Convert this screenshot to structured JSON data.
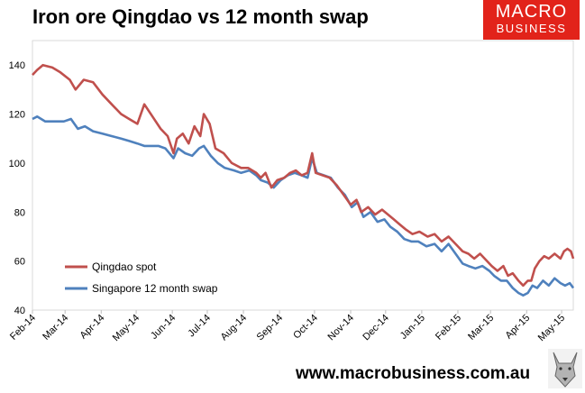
{
  "header": {
    "title": "Iron ore Qingdao vs 12 month swap",
    "logo_line1": "MACRO",
    "logo_line2": "BUSINESS"
  },
  "footer": {
    "url": "www.macrobusiness.com.au",
    "mascot_icon": "wolf-icon"
  },
  "colors": {
    "qingdao": "#c0504d",
    "singapore": "#4f81bd",
    "brand": "#e2231a"
  },
  "chart_data": {
    "type": "line",
    "title": "Iron ore Qingdao vs 12 month swap",
    "xlabel": "",
    "ylabel": "",
    "ylim": [
      40,
      150
    ],
    "yticks": [
      40,
      60,
      80,
      100,
      120,
      140
    ],
    "xlim": [
      "2014-02-01",
      "2015-05-11"
    ],
    "xticks": [
      "Feb-14",
      "Mar-14",
      "Apr-14",
      "May-14",
      "Jun-14",
      "Jul-14",
      "Aug-14",
      "Sep-14",
      "Oct-14",
      "Nov-14",
      "Dec-14",
      "Jan-15",
      "Feb-15",
      "Mar-15",
      "Apr-15",
      "May-15"
    ],
    "grid": false,
    "legend_position": "bottom-left",
    "series": [
      {
        "name": "Qingdao spot",
        "color": "#c0504d",
        "points": [
          [
            "2014-02-01",
            136
          ],
          [
            "2014-02-05",
            138
          ],
          [
            "2014-02-10",
            140
          ],
          [
            "2014-02-18",
            139
          ],
          [
            "2014-02-25",
            137
          ],
          [
            "2014-03-05",
            134
          ],
          [
            "2014-03-10",
            130
          ],
          [
            "2014-03-17",
            134
          ],
          [
            "2014-03-25",
            133
          ],
          [
            "2014-04-02",
            128
          ],
          [
            "2014-04-10",
            124
          ],
          [
            "2014-04-18",
            120
          ],
          [
            "2014-04-25",
            118
          ],
          [
            "2014-05-02",
            116
          ],
          [
            "2014-05-08",
            124
          ],
          [
            "2014-05-15",
            119
          ],
          [
            "2014-05-22",
            114
          ],
          [
            "2014-05-28",
            111
          ],
          [
            "2014-06-02",
            104
          ],
          [
            "2014-06-05",
            110
          ],
          [
            "2014-06-10",
            112
          ],
          [
            "2014-06-15",
            108
          ],
          [
            "2014-06-20",
            115
          ],
          [
            "2014-06-25",
            111
          ],
          [
            "2014-06-28",
            120
          ],
          [
            "2014-07-03",
            116
          ],
          [
            "2014-07-08",
            106
          ],
          [
            "2014-07-15",
            104
          ],
          [
            "2014-07-22",
            100
          ],
          [
            "2014-07-30",
            98
          ],
          [
            "2014-08-05",
            98
          ],
          [
            "2014-08-12",
            96
          ],
          [
            "2014-08-16",
            94
          ],
          [
            "2014-08-20",
            96
          ],
          [
            "2014-08-25",
            90
          ],
          [
            "2014-08-30",
            93
          ],
          [
            "2014-09-05",
            94
          ],
          [
            "2014-09-10",
            96
          ],
          [
            "2014-09-15",
            97
          ],
          [
            "2014-09-20",
            95
          ],
          [
            "2014-09-25",
            96
          ],
          [
            "2014-09-29",
            104
          ],
          [
            "2014-10-02",
            96
          ],
          [
            "2014-10-08",
            95
          ],
          [
            "2014-10-14",
            94
          ],
          [
            "2014-10-20",
            91
          ],
          [
            "2014-10-26",
            87
          ],
          [
            "2014-11-01",
            83
          ],
          [
            "2014-11-06",
            85
          ],
          [
            "2014-11-10",
            80
          ],
          [
            "2014-11-16",
            82
          ],
          [
            "2014-11-22",
            79
          ],
          [
            "2014-11-28",
            81
          ],
          [
            "2014-12-03",
            79
          ],
          [
            "2014-12-08",
            77
          ],
          [
            "2014-12-13",
            75
          ],
          [
            "2014-12-18",
            73
          ],
          [
            "2014-12-24",
            71
          ],
          [
            "2014-12-30",
            72
          ],
          [
            "2015-01-06",
            70
          ],
          [
            "2015-01-12",
            71
          ],
          [
            "2015-01-18",
            68
          ],
          [
            "2015-01-24",
            70
          ],
          [
            "2015-01-30",
            67
          ],
          [
            "2015-02-05",
            64
          ],
          [
            "2015-02-10",
            63
          ],
          [
            "2015-02-15",
            61
          ],
          [
            "2015-02-20",
            63
          ],
          [
            "2015-02-26",
            60
          ],
          [
            "2015-03-02",
            58
          ],
          [
            "2015-03-07",
            56
          ],
          [
            "2015-03-12",
            58
          ],
          [
            "2015-03-16",
            54
          ],
          [
            "2015-03-20",
            55
          ],
          [
            "2015-03-25",
            52
          ],
          [
            "2015-03-29",
            50
          ],
          [
            "2015-04-02",
            52
          ],
          [
            "2015-04-05",
            52
          ],
          [
            "2015-04-08",
            57
          ],
          [
            "2015-04-12",
            60
          ],
          [
            "2015-04-16",
            62
          ],
          [
            "2015-04-20",
            61
          ],
          [
            "2015-04-25",
            63
          ],
          [
            "2015-04-30",
            61
          ],
          [
            "2015-05-03",
            64
          ],
          [
            "2015-05-06",
            65
          ],
          [
            "2015-05-09",
            64
          ],
          [
            "2015-05-11",
            61
          ]
        ]
      },
      {
        "name": "Singapore 12 month swap",
        "color": "#4f81bd",
        "points": [
          [
            "2014-02-01",
            118
          ],
          [
            "2014-02-05",
            119
          ],
          [
            "2014-02-12",
            117
          ],
          [
            "2014-02-20",
            117
          ],
          [
            "2014-02-28",
            117
          ],
          [
            "2014-03-06",
            118
          ],
          [
            "2014-03-12",
            114
          ],
          [
            "2014-03-18",
            115
          ],
          [
            "2014-03-25",
            113
          ],
          [
            "2014-04-02",
            112
          ],
          [
            "2014-04-10",
            111
          ],
          [
            "2014-04-18",
            110
          ],
          [
            "2014-04-25",
            109
          ],
          [
            "2014-05-02",
            108
          ],
          [
            "2014-05-08",
            107
          ],
          [
            "2014-05-15",
            107
          ],
          [
            "2014-05-20",
            107
          ],
          [
            "2014-05-26",
            106
          ],
          [
            "2014-06-02",
            102
          ],
          [
            "2014-06-06",
            106
          ],
          [
            "2014-06-12",
            104
          ],
          [
            "2014-06-18",
            103
          ],
          [
            "2014-06-24",
            106
          ],
          [
            "2014-06-28",
            107
          ],
          [
            "2014-07-04",
            103
          ],
          [
            "2014-07-10",
            100
          ],
          [
            "2014-07-16",
            98
          ],
          [
            "2014-07-24",
            97
          ],
          [
            "2014-07-30",
            96
          ],
          [
            "2014-08-06",
            97
          ],
          [
            "2014-08-12",
            95
          ],
          [
            "2014-08-16",
            93
          ],
          [
            "2014-08-22",
            92
          ],
          [
            "2014-08-27",
            90
          ],
          [
            "2014-09-02",
            93
          ],
          [
            "2014-09-08",
            95
          ],
          [
            "2014-09-14",
            96
          ],
          [
            "2014-09-20",
            95
          ],
          [
            "2014-09-25",
            94
          ],
          [
            "2014-09-29",
            102
          ],
          [
            "2014-10-03",
            96
          ],
          [
            "2014-10-09",
            95
          ],
          [
            "2014-10-15",
            94
          ],
          [
            "2014-10-21",
            90
          ],
          [
            "2014-10-27",
            87
          ],
          [
            "2014-11-02",
            82
          ],
          [
            "2014-11-07",
            84
          ],
          [
            "2014-11-12",
            78
          ],
          [
            "2014-11-18",
            80
          ],
          [
            "2014-11-24",
            76
          ],
          [
            "2014-11-30",
            77
          ],
          [
            "2014-12-05",
            74
          ],
          [
            "2014-12-11",
            72
          ],
          [
            "2014-12-17",
            69
          ],
          [
            "2014-12-23",
            68
          ],
          [
            "2014-12-29",
            68
          ],
          [
            "2015-01-05",
            66
          ],
          [
            "2015-01-12",
            67
          ],
          [
            "2015-01-18",
            64
          ],
          [
            "2015-01-24",
            67
          ],
          [
            "2015-01-30",
            63
          ],
          [
            "2015-02-05",
            59
          ],
          [
            "2015-02-10",
            58
          ],
          [
            "2015-02-16",
            57
          ],
          [
            "2015-02-22",
            58
          ],
          [
            "2015-02-28",
            56
          ],
          [
            "2015-03-04",
            54
          ],
          [
            "2015-03-10",
            52
          ],
          [
            "2015-03-15",
            52
          ],
          [
            "2015-03-20",
            49
          ],
          [
            "2015-03-25",
            47
          ],
          [
            "2015-03-29",
            46
          ],
          [
            "2015-04-02",
            47
          ],
          [
            "2015-04-06",
            50
          ],
          [
            "2015-04-10",
            49
          ],
          [
            "2015-04-15",
            52
          ],
          [
            "2015-04-20",
            50
          ],
          [
            "2015-04-25",
            53
          ],
          [
            "2015-04-30",
            51
          ],
          [
            "2015-05-04",
            50
          ],
          [
            "2015-05-08",
            51
          ],
          [
            "2015-05-11",
            49
          ]
        ]
      }
    ]
  }
}
